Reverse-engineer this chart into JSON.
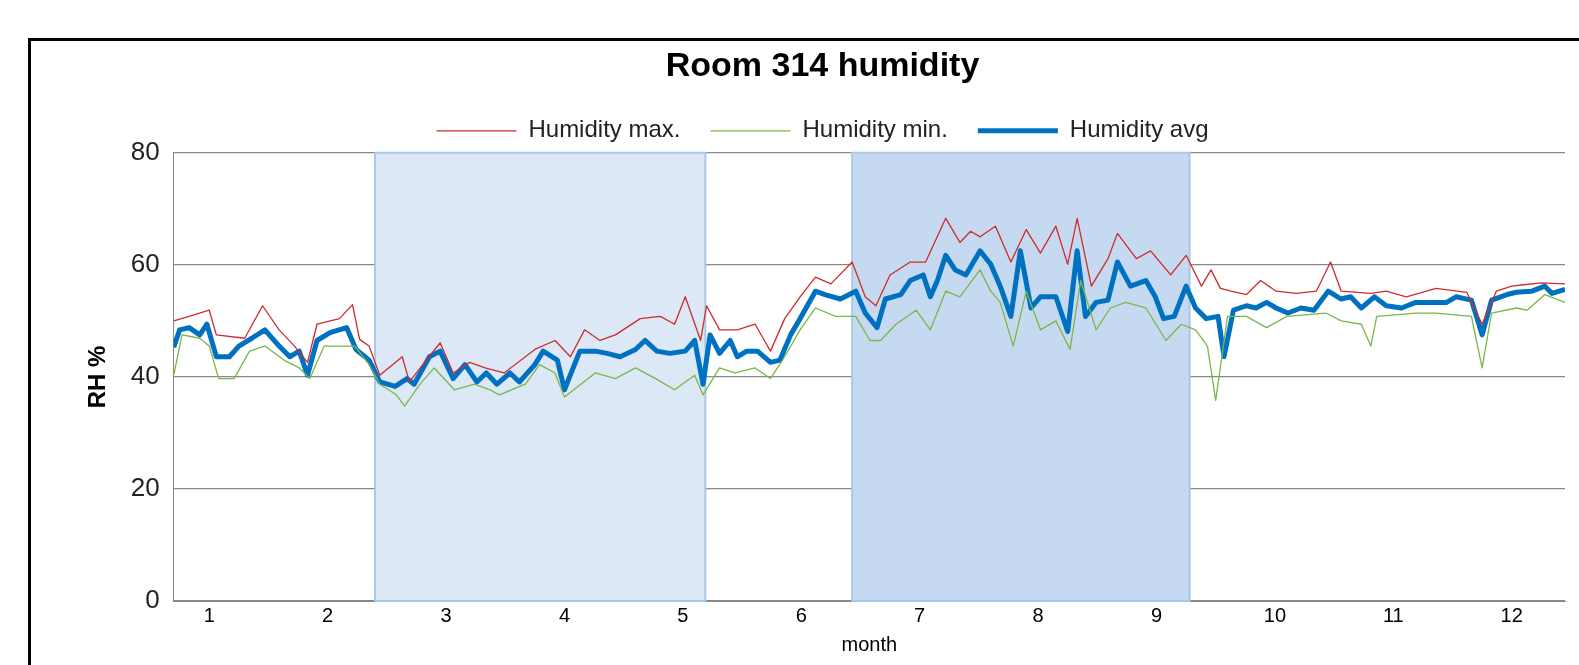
{
  "chart_data": {
    "type": "line",
    "title": "Room 314 humidity",
    "xlabel": "month",
    "ylabel": "RH %",
    "xlim": [
      0.7,
      12.45
    ],
    "xticks": [
      1,
      2,
      3,
      4,
      5,
      6,
      7,
      8,
      9,
      10,
      11,
      12
    ],
    "ylim": [
      0,
      80
    ],
    "yticks": [
      0,
      20,
      40,
      60,
      80
    ],
    "grid": "y",
    "legend": "top",
    "marker": "none",
    "line_style": "solid",
    "bands": [
      {
        "axis": "x",
        "from": 2.4,
        "to": 5.19,
        "color": "#dce8f5"
      },
      {
        "axis": "x",
        "from": 6.43,
        "to": 9.28,
        "color": "#c5daf0"
      }
    ],
    "series": [
      {
        "name": "Humidity max.",
        "color": "#d02b2b",
        "x": [
          0.7,
          0.83,
          1.0,
          1.06,
          1.3,
          1.45,
          1.59,
          1.72,
          1.83,
          1.91,
          2.1,
          2.21,
          2.27,
          2.35,
          2.44,
          2.63,
          2.69,
          2.95,
          3.06,
          3.2,
          3.33,
          3.49,
          3.75,
          3.92,
          4.05,
          4.17,
          4.3,
          4.43,
          4.64,
          4.81,
          4.93,
          5.02,
          5.15,
          5.2,
          5.31,
          5.46,
          5.61,
          5.74,
          5.86,
          5.99,
          6.12,
          6.25,
          6.43,
          6.54,
          6.63,
          6.75,
          6.92,
          7.05,
          7.22,
          7.34,
          7.43,
          7.51,
          7.64,
          7.77,
          7.9,
          8.02,
          8.15,
          8.25,
          8.33,
          8.45,
          8.59,
          8.67,
          8.83,
          8.95,
          9.12,
          9.25,
          9.38,
          9.46,
          9.54,
          9.63,
          9.76,
          9.88,
          10.01,
          10.18,
          10.35,
          10.47,
          10.56,
          10.81,
          10.94,
          11.11,
          11.36,
          11.62,
          11.75,
          11.87,
          12.0,
          12.25,
          12.45
        ],
        "values": [
          50,
          50.8,
          51.9,
          47.5,
          46.9,
          52.7,
          48.4,
          45.5,
          42.6,
          49.4,
          50.4,
          52.9,
          46.7,
          45.5,
          40.3,
          43.6,
          39.1,
          46.1,
          40.7,
          42.6,
          41.6,
          40.7,
          44.9,
          46.5,
          43.6,
          48.4,
          46.5,
          47.5,
          50.4,
          50.8,
          49.4,
          54.3,
          46.5,
          52.7,
          48.4,
          48.4,
          49.4,
          44.6,
          50.4,
          54.3,
          57.8,
          56.6,
          60.5,
          54.3,
          52.7,
          58.2,
          60.5,
          60.5,
          68.3,
          64,
          66,
          65,
          66.9,
          60.5,
          66.3,
          62.1,
          66.9,
          60.1,
          68.3,
          56.2,
          61.1,
          65.6,
          61.1,
          62.5,
          58.2,
          61.7,
          56.2,
          59.1,
          55.8,
          55.3,
          54.7,
          57.2,
          55.3,
          54.9,
          55.3,
          60.5,
          55.3,
          54.9,
          55.3,
          54.3,
          55.8,
          55.1,
          49.4,
          55.3,
          56.2,
          56.8,
          56.6
        ]
      },
      {
        "name": "Humidity min.",
        "color": "#7ab648",
        "x": [
          0.7,
          0.77,
          0.92,
          1.0,
          1.08,
          1.21,
          1.34,
          1.47,
          1.63,
          1.76,
          1.85,
          1.97,
          2.23,
          2.35,
          2.44,
          2.58,
          2.65,
          2.78,
          2.9,
          3.07,
          3.24,
          3.37,
          3.45,
          3.67,
          3.79,
          3.92,
          4.0,
          4.26,
          4.43,
          4.6,
          4.77,
          4.93,
          5.1,
          5.17,
          5.31,
          5.44,
          5.61,
          5.74,
          5.86,
          5.99,
          6.12,
          6.29,
          6.46,
          6.58,
          6.67,
          6.8,
          6.97,
          7.09,
          7.22,
          7.34,
          7.51,
          7.6,
          7.68,
          7.79,
          7.9,
          8.02,
          8.15,
          8.27,
          8.36,
          8.49,
          8.61,
          8.74,
          8.91,
          9.08,
          9.21,
          9.33,
          9.43,
          9.5,
          9.6,
          9.76,
          9.93,
          10.1,
          10.43,
          10.56,
          10.73,
          10.81,
          10.86,
          11.19,
          11.36,
          11.66,
          11.75,
          11.83,
          12.04,
          12.13,
          12.28,
          12.45
        ],
        "values": [
          40.3,
          47.5,
          46.9,
          45.5,
          39.7,
          39.7,
          44.6,
          45.5,
          43,
          41.6,
          39.7,
          45.5,
          45.5,
          42.2,
          38.7,
          36.8,
          34.8,
          38.7,
          41.6,
          37.7,
          38.7,
          37.7,
          36.8,
          38.7,
          42.2,
          40.7,
          36.4,
          40.7,
          39.7,
          41.6,
          39.7,
          37.7,
          40.3,
          36.8,
          41.6,
          40.7,
          41.6,
          39.7,
          43.6,
          48.4,
          52.3,
          50.8,
          50.8,
          46.5,
          46.5,
          49.4,
          51.9,
          48.4,
          55.3,
          54.3,
          59.1,
          55.3,
          53.3,
          45.5,
          55.3,
          48.4,
          50,
          44.9,
          57.2,
          48.4,
          52.3,
          53.3,
          52.3,
          46.5,
          49.4,
          48.4,
          45.5,
          35.8,
          50.8,
          50.8,
          48.8,
          50.8,
          51.4,
          50,
          49.4,
          45.5,
          50.8,
          51.4,
          51.4,
          50.8,
          41.6,
          51.4,
          52.3,
          51.9,
          54.7,
          53.3
        ]
      },
      {
        "name": "Humidity avg",
        "color": "#0070c0",
        "x": [
          0.7,
          0.75,
          0.83,
          0.92,
          0.98,
          1.06,
          1.17,
          1.25,
          1.36,
          1.47,
          1.59,
          1.68,
          1.76,
          1.83,
          1.91,
          2.02,
          2.16,
          2.24,
          2.35,
          2.44,
          2.57,
          2.67,
          2.73,
          2.86,
          2.95,
          3.06,
          3.16,
          3.26,
          3.34,
          3.43,
          3.54,
          3.62,
          3.75,
          3.82,
          3.94,
          4.0,
          4.13,
          4.26,
          4.36,
          4.47,
          4.6,
          4.68,
          4.78,
          4.89,
          5.02,
          5.1,
          5.17,
          5.23,
          5.31,
          5.4,
          5.46,
          5.54,
          5.63,
          5.74,
          5.82,
          5.91,
          5.99,
          6.12,
          6.2,
          6.33,
          6.46,
          6.54,
          6.64,
          6.71,
          6.84,
          6.92,
          7.03,
          7.09,
          7.15,
          7.22,
          7.3,
          7.39,
          7.51,
          7.6,
          7.68,
          7.77,
          7.85,
          7.94,
          8.02,
          8.15,
          8.25,
          8.33,
          8.4,
          8.49,
          8.59,
          8.67,
          8.78,
          8.91,
          8.99,
          9.06,
          9.15,
          9.25,
          9.33,
          9.42,
          9.52,
          9.57,
          9.65,
          9.76,
          9.84,
          9.93,
          10.01,
          10.11,
          10.22,
          10.33,
          10.45,
          10.56,
          10.64,
          10.73,
          10.84,
          10.94,
          11.07,
          11.19,
          11.36,
          11.45,
          11.53,
          11.66,
          11.75,
          11.83,
          11.96,
          12.04,
          12.17,
          12.28,
          12.34,
          12.45
        ],
        "values": [
          45.3,
          48.4,
          48.8,
          47.5,
          49.4,
          43.6,
          43.6,
          45.5,
          46.9,
          48.4,
          45.5,
          43.6,
          44.6,
          40.3,
          46.5,
          47.9,
          48.8,
          44.9,
          43,
          39.1,
          38.3,
          39.7,
          38.7,
          43.6,
          44.6,
          39.7,
          42.2,
          39.1,
          40.7,
          38.7,
          40.7,
          39.1,
          42.2,
          44.6,
          43,
          37.7,
          44.6,
          44.6,
          44.2,
          43.6,
          44.9,
          46.5,
          44.6,
          44.2,
          44.6,
          46.5,
          38.7,
          47.5,
          44.2,
          46.5,
          43.6,
          44.6,
          44.6,
          42.6,
          43,
          47.5,
          50.4,
          55.3,
          54.7,
          53.9,
          55.3,
          51.4,
          48.8,
          53.9,
          54.7,
          57.2,
          58.2,
          54.3,
          57.2,
          61.7,
          59.1,
          58.2,
          62.5,
          60.1,
          56.2,
          50.8,
          62.5,
          52.3,
          54.3,
          54.3,
          48.1,
          62.5,
          50.8,
          53.3,
          53.7,
          60.5,
          56.2,
          57.2,
          54.3,
          50.4,
          50.8,
          56.2,
          52.3,
          50.4,
          50.8,
          43.6,
          51.9,
          52.7,
          52.3,
          53.3,
          52.3,
          51.4,
          52.3,
          51.9,
          55.3,
          53.9,
          54.3,
          52.3,
          54.3,
          52.7,
          52.3,
          53.3,
          53.3,
          53.3,
          54.3,
          53.7,
          47.5,
          53.7,
          54.7,
          55.1,
          55.3,
          56.2,
          54.9,
          55.6
        ]
      }
    ]
  }
}
